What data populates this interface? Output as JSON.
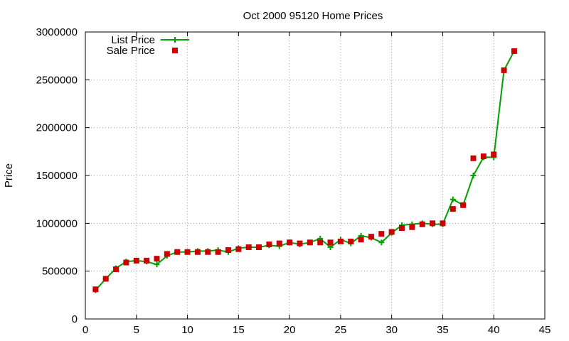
{
  "chart_data": {
    "type": "line",
    "title": "Oct 2000 95120 Home Prices",
    "xlabel": "",
    "ylabel": "Price",
    "xlim": [
      0,
      45
    ],
    "ylim": [
      0,
      3000000
    ],
    "x_ticks": [
      0,
      5,
      10,
      15,
      20,
      25,
      30,
      35,
      40,
      45
    ],
    "y_ticks": [
      0,
      500000,
      1000000,
      1500000,
      2000000,
      2500000,
      3000000
    ],
    "grid": true,
    "legend_position": "top-left",
    "series": [
      {
        "name": "List Price",
        "style": "line-plus",
        "color": "#00a000",
        "x": [
          1,
          2,
          3,
          4,
          5,
          6,
          7,
          8,
          9,
          10,
          11,
          12,
          13,
          14,
          15,
          16,
          17,
          18,
          19,
          20,
          21,
          22,
          23,
          24,
          25,
          26,
          27,
          28,
          29,
          30,
          31,
          32,
          33,
          34,
          35,
          36,
          37,
          38,
          39,
          40,
          41,
          42
        ],
        "values": [
          300000,
          420000,
          530000,
          600000,
          610000,
          600000,
          570000,
          660000,
          700000,
          700000,
          710000,
          710000,
          720000,
          700000,
          740000,
          750000,
          750000,
          770000,
          760000,
          800000,
          780000,
          800000,
          840000,
          750000,
          830000,
          790000,
          870000,
          850000,
          800000,
          900000,
          980000,
          990000,
          1000000,
          990000,
          990000,
          1250000,
          1190000,
          1500000,
          1690000,
          1690000,
          2600000,
          2800000
        ]
      },
      {
        "name": "Sale Price",
        "style": "points-square",
        "color": "#cc0000",
        "x": [
          1,
          2,
          3,
          4,
          5,
          6,
          7,
          8,
          9,
          10,
          11,
          12,
          13,
          14,
          15,
          16,
          17,
          18,
          19,
          20,
          21,
          22,
          23,
          24,
          25,
          26,
          27,
          28,
          29,
          30,
          31,
          32,
          33,
          34,
          35,
          36,
          37,
          38,
          39,
          40,
          41,
          42
        ],
        "values": [
          310000,
          420000,
          520000,
          590000,
          610000,
          610000,
          630000,
          680000,
          700000,
          700000,
          700000,
          700000,
          700000,
          720000,
          730000,
          750000,
          750000,
          780000,
          790000,
          800000,
          790000,
          800000,
          800000,
          800000,
          810000,
          810000,
          830000,
          860000,
          890000,
          910000,
          950000,
          960000,
          990000,
          1000000,
          1000000,
          1150000,
          1190000,
          1680000,
          1700000,
          1720000,
          2600000,
          2800000
        ]
      }
    ]
  }
}
